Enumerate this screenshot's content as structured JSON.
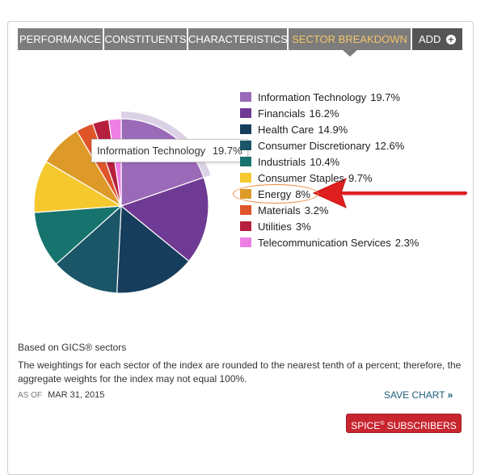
{
  "tabs": [
    {
      "label": "PERFORMANCE",
      "active": false
    },
    {
      "label": "CONSTITUENTS",
      "active": false
    },
    {
      "label": "CHARACTERISTICS",
      "active": false
    },
    {
      "label": "SECTOR BREAKDOWN",
      "active": true
    },
    {
      "label": "ADD",
      "active": false
    }
  ],
  "add_icon": "plus-circle-icon",
  "chart_data": {
    "type": "pie",
    "slices": [
      {
        "label": "Information Technology",
        "value_label": "19.7%",
        "value": 19.7,
        "color": "#9a6ab8"
      },
      {
        "label": "Financials",
        "value_label": "16.2%",
        "value": 16.2,
        "color": "#6f3a93"
      },
      {
        "label": "Health Care",
        "value_label": "14.9%",
        "value": 14.9,
        "color": "#173d5c"
      },
      {
        "label": "Consumer Discretionary",
        "value_label": "12.6%",
        "value": 12.6,
        "color": "#1b5568"
      },
      {
        "label": "Industrials",
        "value_label": "10.4%",
        "value": 10.4,
        "color": "#16736d"
      },
      {
        "label": "Consumer Staples",
        "value_label": "9.7%",
        "value": 9.7,
        "color": "#f5c92e"
      },
      {
        "label": "Energy",
        "value_label": "8%",
        "value": 8,
        "color": "#dd9a28"
      },
      {
        "label": "Materials",
        "value_label": "3.2%",
        "value": 3.2,
        "color": "#e0542a"
      },
      {
        "label": "Utilities",
        "value_label": "3%",
        "value": 3,
        "color": "#b6203e"
      },
      {
        "label": "Telecommunication Services",
        "value_label": "2.3%",
        "value": 2.3,
        "color": "#ee7ee3"
      }
    ],
    "highlighted": "Information Technology",
    "annotated": "Energy"
  },
  "tooltip": {
    "label": "Information Technology",
    "value": "19.7%"
  },
  "notes": {
    "gics": "Based on GICS® sectors",
    "description": "The weightings for each sector of the index are rounded to the nearest tenth of a percent; therefore, the aggregate weights for the index may not equal 100%."
  },
  "as_of": {
    "label": "AS OF",
    "date": "MAR 31, 2015"
  },
  "save_chart": {
    "label": "SAVE CHART",
    "icon": "double-chevron-right-icon"
  },
  "spice": {
    "label_pre": "SPICE",
    "mark": "®",
    "label_post": " SUBSCRIBERS"
  }
}
